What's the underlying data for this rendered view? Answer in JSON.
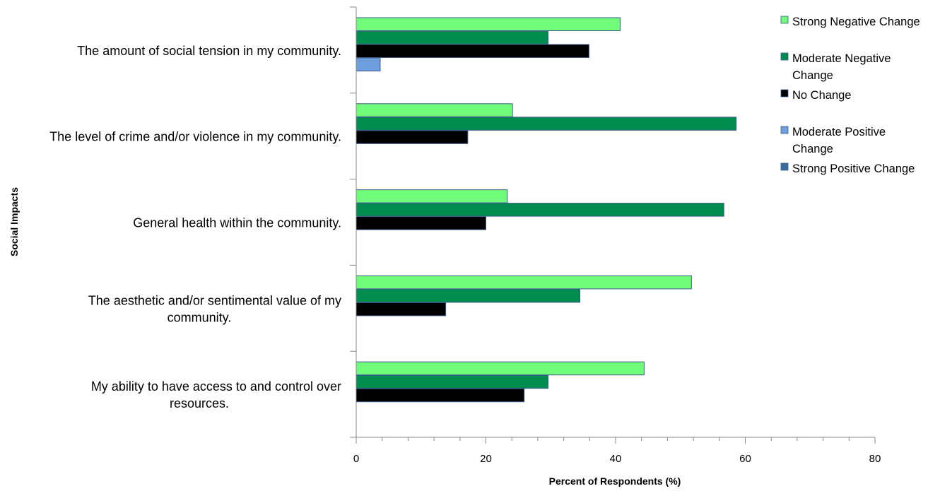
{
  "chart_data": {
    "type": "bar",
    "orientation": "horizontal",
    "title": "",
    "xlabel": "Percent of Respondents (%)",
    "ylabel": "Social Impacts",
    "xlim": [
      0,
      80
    ],
    "xticks": [
      0,
      20,
      40,
      60,
      80
    ],
    "grid": false,
    "legend_position": "top-right",
    "categories": [
      [
        "The amount of social tension in my community."
      ],
      [
        "The level of crime and/or violence in my community."
      ],
      [
        "General health within the community."
      ],
      [
        "The aesthetic and/or sentimental value of my",
        "community."
      ],
      [
        "My ability to have access to and control over",
        "resources."
      ]
    ],
    "series": [
      {
        "name": [
          "Strong Negative Change"
        ],
        "color": "#71fb7b",
        "values": [
          40.7,
          24.1,
          23.3,
          51.7,
          44.4
        ]
      },
      {
        "name": [
          "Moderate Negative",
          "Change"
        ],
        "color": "#008c4f",
        "values": [
          29.6,
          58.6,
          56.7,
          34.5,
          29.6
        ]
      },
      {
        "name": [
          "No Change"
        ],
        "color": "#000000",
        "values": [
          35.9,
          17.2,
          20.0,
          13.8,
          25.9
        ]
      },
      {
        "name": [
          "Moderate Positive",
          "Change"
        ],
        "color": "#6e9fdc",
        "values": [
          3.7,
          0,
          0,
          0,
          0
        ]
      },
      {
        "name": [
          "Strong Positive Change"
        ],
        "color": "#3a6d9c",
        "values": [
          0,
          0,
          0,
          0,
          0
        ]
      }
    ]
  }
}
